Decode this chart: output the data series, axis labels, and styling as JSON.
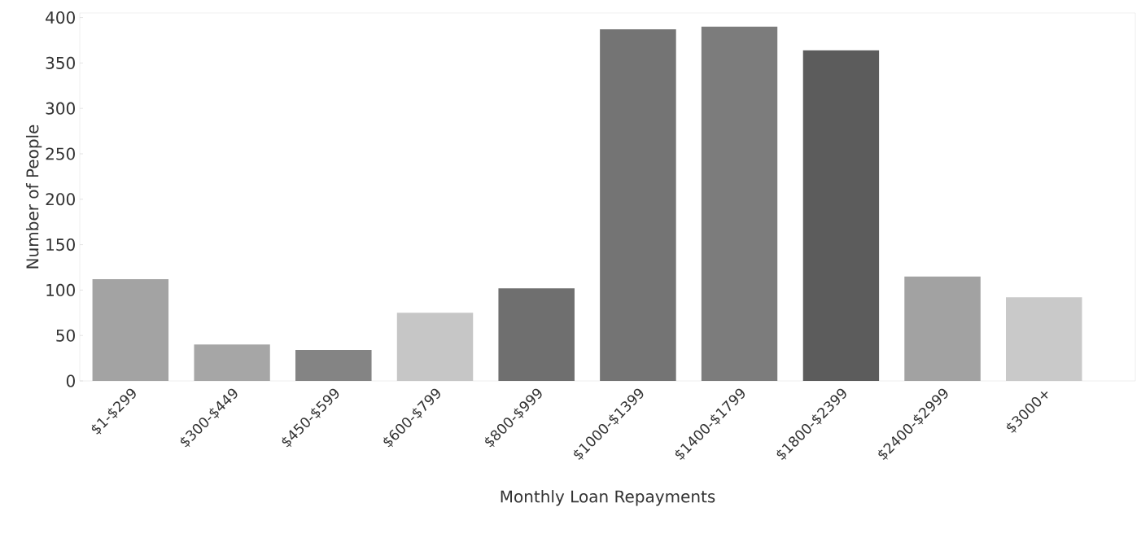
{
  "chart_data": {
    "type": "bar",
    "xlabel": "Monthly Loan Repayments",
    "ylabel": "Number of People",
    "categories": [
      "$1-$299",
      "$300-$449",
      "$450-$599",
      "$600-$799",
      "$800-$999",
      "$1000-$1399",
      "$1400-$1799",
      "$1800-$2399",
      "$2400-$2999",
      "$3000+"
    ],
    "values": [
      112,
      40,
      34,
      75,
      102,
      387,
      390,
      364,
      115,
      92
    ],
    "colors": [
      "#a3a3a3",
      "#a6a6a6",
      "#848484",
      "#c6c6c6",
      "#6f6f6f",
      "#747474",
      "#7c7c7c",
      "#5c5c5c",
      "#a2a2a2",
      "#c9c9c9"
    ],
    "ylim": [
      0,
      405
    ],
    "yticks": [
      0,
      50,
      100,
      150,
      200,
      250,
      300,
      350,
      400
    ],
    "grid": false
  }
}
